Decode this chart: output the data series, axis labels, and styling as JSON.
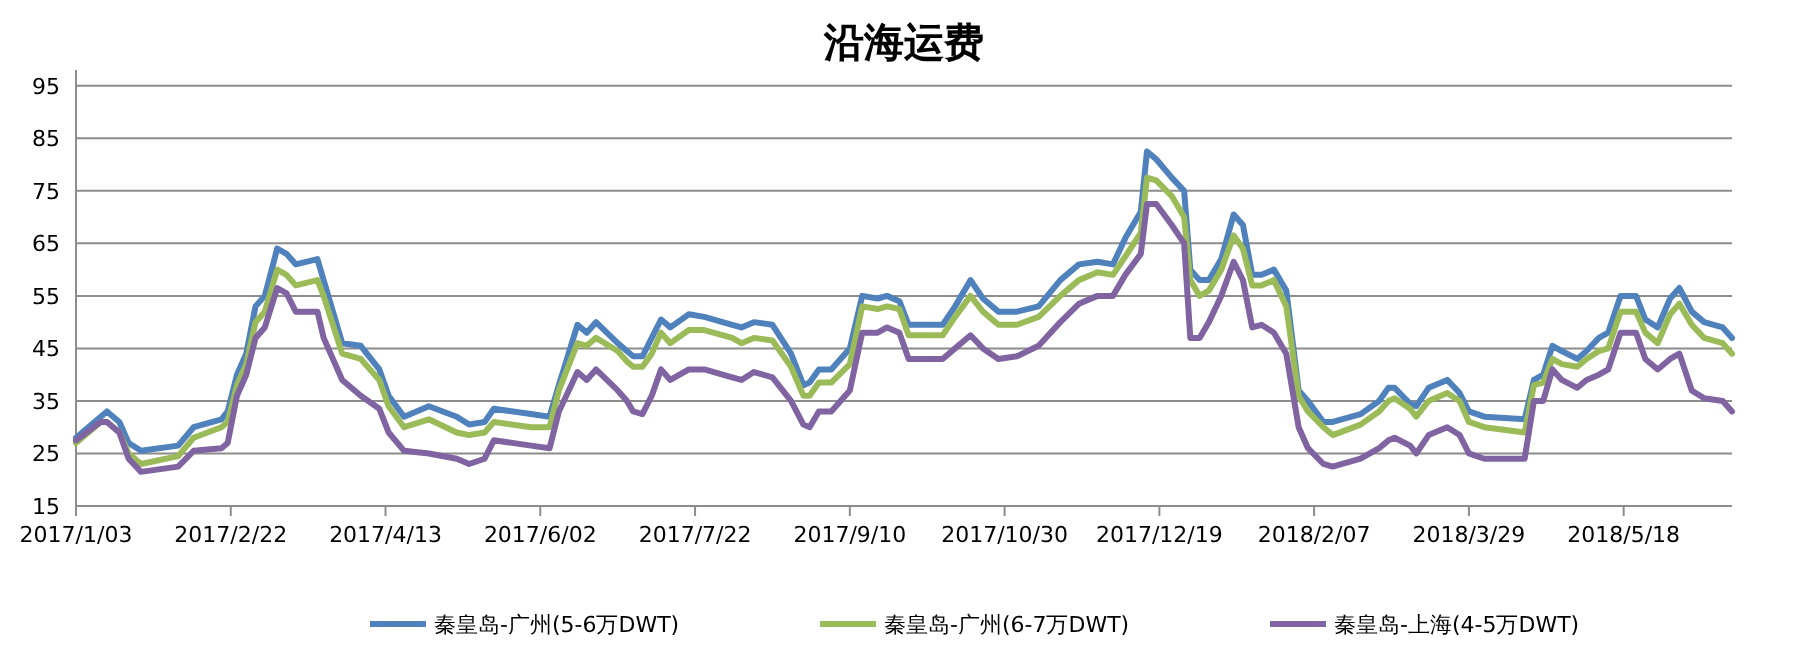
{
  "chart_data": {
    "type": "line",
    "title": "沿海运费",
    "x": [
      "2017-01-03",
      "2017-01-11",
      "2017-01-13",
      "2017-01-17",
      "2017-01-20",
      "2017-01-24",
      "2017-02-05",
      "2017-02-10",
      "2017-02-19",
      "2017-02-21",
      "2017-02-24",
      "2017-02-27",
      "2017-03-02",
      "2017-03-05",
      "2017-03-09",
      "2017-03-12",
      "2017-03-15",
      "2017-03-22",
      "2017-03-24",
      "2017-03-30",
      "2017-04-05",
      "2017-04-11",
      "2017-04-14",
      "2017-04-19",
      "2017-04-27",
      "2017-05-06",
      "2017-05-10",
      "2017-05-15",
      "2017-05-18",
      "2017-05-30",
      "2017-06-05",
      "2017-06-08",
      "2017-06-14",
      "2017-06-17",
      "2017-06-20",
      "2017-06-27",
      "2017-06-30",
      "2017-07-02",
      "2017-07-05",
      "2017-07-08",
      "2017-07-11",
      "2017-07-14",
      "2017-07-20",
      "2017-07-25",
      "2017-08-03",
      "2017-08-06",
      "2017-08-10",
      "2017-08-16",
      "2017-08-22",
      "2017-08-26",
      "2017-08-28",
      "2017-08-31",
      "2017-09-04",
      "2017-09-10",
      "2017-09-14",
      "2017-09-19",
      "2017-09-22",
      "2017-09-26",
      "2017-09-29",
      "2017-10-10",
      "2017-10-14",
      "2017-10-19",
      "2017-10-23",
      "2017-10-28",
      "2017-11-03",
      "2017-11-10",
      "2017-11-17",
      "2017-11-23",
      "2017-11-29",
      "2017-12-04",
      "2017-12-08",
      "2017-12-13",
      "2017-12-15",
      "2017-12-18",
      "2017-12-23",
      "2017-12-27",
      "2017-12-29",
      "2018-01-01",
      "2018-01-04",
      "2018-01-08",
      "2018-01-12",
      "2018-01-15",
      "2018-01-18",
      "2018-01-21",
      "2018-01-25",
      "2018-01-29",
      "2018-02-02",
      "2018-02-05",
      "2018-02-10",
      "2018-02-13",
      "2018-02-22",
      "2018-02-28",
      "2018-03-03",
      "2018-03-05",
      "2018-03-10",
      "2018-03-12",
      "2018-03-16",
      "2018-03-22",
      "2018-03-26",
      "2018-03-29",
      "2018-04-03",
      "2018-04-16",
      "2018-04-19",
      "2018-04-22",
      "2018-04-25",
      "2018-04-28",
      "2018-05-03",
      "2018-05-06",
      "2018-05-10",
      "2018-05-13",
      "2018-05-17",
      "2018-05-22",
      "2018-05-25",
      "2018-05-29",
      "2018-06-02",
      "2018-06-05",
      "2018-06-09",
      "2018-06-13",
      "2018-06-19",
      "2018-06-22"
    ],
    "series": [
      {
        "name": "秦皇岛-广州(5-6万DWT)",
        "color": "#4f81bd",
        "values": [
          28,
          32,
          33,
          31,
          27,
          25.5,
          26.5,
          30,
          31.5,
          33,
          40,
          44,
          53,
          55,
          64,
          63,
          61,
          62,
          58,
          46,
          45.5,
          41,
          36,
          32,
          34,
          32,
          30.5,
          31,
          33.5,
          32.5,
          32,
          38,
          49.5,
          48,
          50,
          46,
          44.5,
          43.5,
          43.5,
          47,
          50.5,
          49,
          51.5,
          51,
          49.5,
          49,
          50,
          49.5,
          44,
          38,
          38.5,
          41,
          41,
          45,
          55,
          54.5,
          55,
          54,
          49.5,
          49.5,
          53,
          58,
          54.5,
          52,
          52,
          53,
          58,
          61,
          61.5,
          61,
          66,
          71,
          82.5,
          81,
          77.5,
          75,
          60,
          58,
          58,
          62,
          70.5,
          68.5,
          59,
          59,
          60,
          56,
          37,
          35,
          31,
          31,
          32.5,
          35,
          37.5,
          37.5,
          34.5,
          34,
          37.5,
          39,
          36.5,
          33,
          32,
          31.5,
          39,
          40,
          45.5,
          44.5,
          43,
          44.5,
          47,
          48,
          55,
          55,
          50.5,
          49,
          54.5,
          56.5,
          52,
          50,
          49,
          47
        ]
      },
      {
        "name": "秦皇岛-广州(6-7万DWT)",
        "color": "#9bbb59",
        "values": [
          27,
          31,
          31,
          29,
          25,
          23,
          24.5,
          28,
          30,
          31,
          38,
          42,
          50,
          52,
          60,
          59,
          57,
          58,
          55,
          44,
          43,
          39,
          34,
          30,
          31.5,
          29,
          28.5,
          29,
          31,
          30,
          30,
          37,
          46,
          45.5,
          47,
          44.5,
          42.5,
          41.5,
          41.5,
          44,
          48,
          46,
          48.5,
          48.5,
          47,
          46,
          47,
          46.5,
          41.5,
          36,
          36,
          38.5,
          38.5,
          42,
          53,
          52.5,
          53,
          52.5,
          47.5,
          47.5,
          51,
          55,
          52,
          49.5,
          49.5,
          51,
          55,
          58,
          59.5,
          59,
          62.5,
          67,
          77.5,
          77,
          74,
          70,
          58,
          55,
          56,
          60,
          66.5,
          64,
          57,
          57,
          58,
          53,
          36,
          33,
          30,
          28.5,
          30.5,
          33,
          35,
          35.5,
          33.5,
          32,
          35,
          36.5,
          35,
          31,
          30,
          29,
          38,
          38.5,
          43,
          42,
          41.5,
          43,
          44.5,
          45,
          52,
          52,
          48,
          46,
          51.5,
          53.5,
          49.5,
          47,
          46,
          44
        ]
      },
      {
        "name": "秦皇岛-上海(4-5万DWT)",
        "color": "#8064a2",
        "values": [
          27.5,
          31,
          31,
          29,
          24,
          21.5,
          22.5,
          25.5,
          26,
          27,
          36,
          40,
          47,
          49,
          56.5,
          55.5,
          52,
          52,
          47,
          39,
          36,
          33.5,
          29,
          25.5,
          25,
          24,
          23,
          24,
          27.5,
          26.5,
          26,
          33,
          40.5,
          39,
          41,
          37,
          35,
          33,
          32.5,
          36,
          41,
          39,
          41,
          41,
          39.5,
          39,
          40.5,
          39.5,
          35,
          30.5,
          30,
          33,
          33,
          37,
          48,
          48,
          49,
          48,
          43,
          43,
          45,
          47.5,
          45,
          43,
          43.5,
          45.5,
          50,
          53.5,
          55,
          55,
          59,
          63,
          72.5,
          72.5,
          68.5,
          65,
          47,
          47,
          50,
          55,
          61.5,
          58,
          49,
          49.5,
          48,
          44,
          30,
          26,
          23,
          22.5,
          24,
          26,
          27.5,
          28,
          26.5,
          25,
          28.5,
          30,
          28.5,
          25,
          24,
          24,
          35,
          35,
          41,
          39,
          37.5,
          39,
          40,
          41,
          48,
          48,
          43,
          41,
          43,
          44,
          37,
          35.5,
          35,
          33
        ]
      }
    ],
    "xlim": [
      "2017-01-03",
      "2018-06-22"
    ],
    "xticks": [
      {
        "value": "2017-01-03",
        "label": "2017/1/03"
      },
      {
        "value": "2017-02-22",
        "label": "2017/2/22"
      },
      {
        "value": "2017-04-13",
        "label": "2017/4/13"
      },
      {
        "value": "2017-06-02",
        "label": "2017/6/02"
      },
      {
        "value": "2017-07-22",
        "label": "2017/7/22"
      },
      {
        "value": "2017-09-10",
        "label": "2017/9/10"
      },
      {
        "value": "2017-10-30",
        "label": "2017/10/30"
      },
      {
        "value": "2017-12-19",
        "label": "2017/12/19"
      },
      {
        "value": "2018-02-07",
        "label": "2018/2/07"
      },
      {
        "value": "2018-03-29",
        "label": "2018/3/29"
      },
      {
        "value": "2018-05-18",
        "label": "2018/5/18"
      }
    ],
    "ylim": [
      15,
      98
    ],
    "yticks": [
      15,
      25,
      35,
      45,
      55,
      65,
      75,
      85,
      95
    ],
    "grid": "y",
    "legend": "bottom"
  }
}
